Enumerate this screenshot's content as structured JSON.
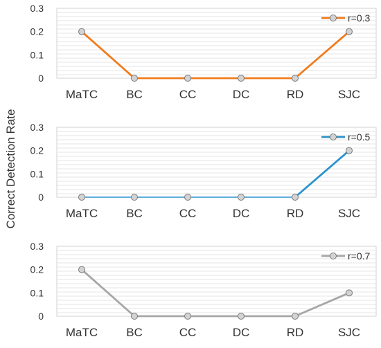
{
  "ylabel": "Correct Detection Rate",
  "chart_data": [
    {
      "type": "line",
      "categories": [
        "MaTC",
        "BC",
        "CC",
        "DC",
        "RD",
        "SJC"
      ],
      "series": [
        {
          "name": "r=0.3",
          "values": [
            0.2,
            0,
            0,
            0,
            0,
            0.2
          ],
          "color": "#F07B1C"
        }
      ],
      "ylim": [
        0,
        0.3
      ],
      "yticks": [
        "0",
        "0.1",
        "0.2",
        "0.3"
      ],
      "legend": "top-right",
      "grid": true
    },
    {
      "type": "line",
      "categories": [
        "MaTC",
        "BC",
        "CC",
        "DC",
        "RD",
        "SJC"
      ],
      "series": [
        {
          "name": "r=0.5",
          "values": [
            0,
            0,
            0,
            0,
            0,
            0.2
          ],
          "color": "#2A93CF"
        }
      ],
      "ylim": [
        0,
        0.3
      ],
      "yticks": [
        "0",
        "0.1",
        "0.2",
        "0.3"
      ],
      "legend": "top-right",
      "grid": true
    },
    {
      "type": "line",
      "categories": [
        "MaTC",
        "BC",
        "CC",
        "DC",
        "RD",
        "SJC"
      ],
      "series": [
        {
          "name": "r=0.7",
          "values": [
            0.2,
            0,
            0,
            0,
            0,
            0.1
          ],
          "color": "#A6A6A6"
        }
      ],
      "ylim": [
        0,
        0.3
      ],
      "yticks": [
        "0",
        "0.1",
        "0.2",
        "0.3"
      ],
      "legend": "top-right",
      "grid": true
    }
  ]
}
